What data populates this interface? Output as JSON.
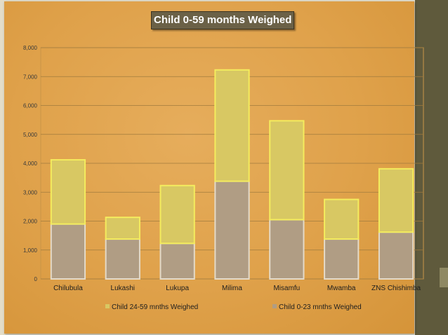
{
  "chart_data": {
    "type": "bar",
    "stacked": true,
    "title": "Child 0-59 months Weighed",
    "categories": [
      "Chilubula",
      "Lukashi",
      "Lukupa",
      "Milima",
      "Misamfu",
      "Mwamba",
      "ZNS Chishimba"
    ],
    "series": [
      {
        "name": "Child 0-23 mnths Weighed",
        "color": "#b09d84",
        "values": [
          1900,
          1380,
          1230,
          3380,
          2050,
          1380,
          1620
        ]
      },
      {
        "name": "Child 24-59 mnths Weighed",
        "color": "#d8c863",
        "values": [
          2220,
          750,
          2000,
          3850,
          3420,
          1370,
          2190
        ]
      }
    ],
    "ylim": [
      0,
      8000
    ],
    "yticks": [
      "0",
      "1,000",
      "2,000",
      "3,000",
      "4,000",
      "5,000",
      "6,000",
      "7,000",
      "8,000"
    ],
    "grid": true,
    "legend": "bottom"
  },
  "colors": {
    "background": "#dfa14a",
    "side_bar": "#5f5a3c",
    "title_box": "#6b6147"
  }
}
